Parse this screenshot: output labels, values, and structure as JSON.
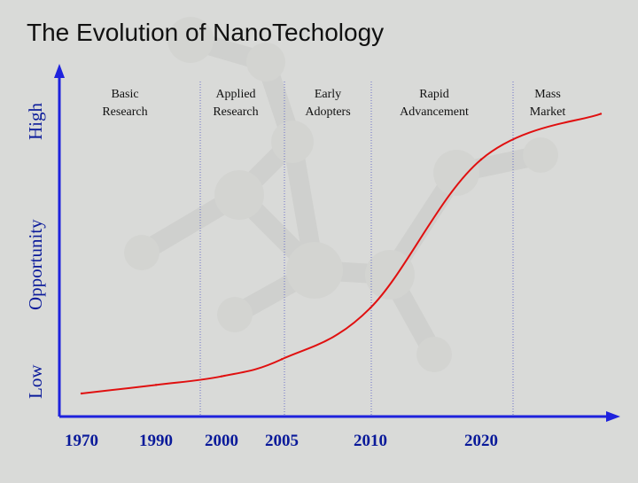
{
  "colors": {
    "background": "#d9dad8",
    "axis": "#1e22dd",
    "divider": "#6a70c8",
    "curve": "#e01010",
    "axis_text": "#0a1a9a",
    "title": "#111111"
  },
  "chart_data": {
    "type": "line",
    "title": "The Evolution of NanoTechology",
    "y_axis": {
      "low_label": "Low",
      "mid_label": "Opportunity",
      "high_label": "High"
    },
    "x_ticks": [
      "1970",
      "1990",
      "2000",
      "2005",
      "2010",
      "2020"
    ],
    "phases": [
      {
        "lines": [
          "Basic",
          "Research"
        ]
      },
      {
        "lines": [
          "Applied",
          "Research"
        ]
      },
      {
        "lines": [
          "Early",
          "Adopters"
        ]
      },
      {
        "lines": [
          "Rapid",
          "Advancement"
        ]
      },
      {
        "lines": [
          "Mass",
          "Market"
        ]
      }
    ],
    "phase_boundaries": [
      "2000",
      "2005",
      "2010",
      "2020"
    ],
    "series": [
      {
        "curve_shape": "s-curve",
        "x": [
          "1970",
          "1990",
          "2000",
          "2005",
          "2010",
          "2020",
          "2030"
        ],
        "y": [
          0.0,
          0.03,
          0.06,
          0.12,
          0.3,
          0.82,
          0.98
        ]
      }
    ],
    "ylim": [
      0,
      1
    ],
    "grid": false,
    "legend": "none"
  }
}
